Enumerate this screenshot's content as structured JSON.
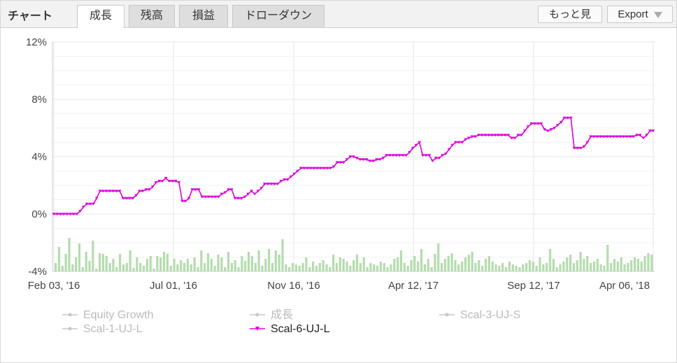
{
  "header": {
    "title": "チャート",
    "tabs": [
      {
        "label": "成長",
        "active": true
      },
      {
        "label": "残高",
        "active": false
      },
      {
        "label": "損益",
        "active": false
      },
      {
        "label": "ドローダウン",
        "active": false
      }
    ],
    "more_label": "もっと見",
    "export_label": "Export"
  },
  "colors": {
    "line": "#dd00dd",
    "bars": "#b5dcae",
    "grid": "#e6e6e6",
    "legend_inactive": "#c8c8c8",
    "legend_active": "#dd00dd"
  },
  "chart_data": {
    "type": "line",
    "ylim": [
      -4,
      12
    ],
    "yticks": [
      12,
      8,
      4,
      0,
      -4
    ],
    "ytick_labels": [
      "12%",
      "8%",
      "4%",
      "0%",
      "-4%"
    ],
    "xtick_labels": [
      "Feb 03, '16",
      "Jul 01, '16",
      "Nov 16, '16",
      "Apr 12, '17",
      "Sep 12, '17",
      "Apr 06, '18"
    ],
    "series": [
      {
        "name": "Scal-6-UJ-L",
        "values": [
          0.0,
          0.0,
          0.0,
          0.0,
          0.0,
          0.0,
          0.0,
          0.0,
          0.2,
          0.5,
          0.7,
          0.7,
          0.7,
          1.1,
          1.6,
          1.6,
          1.6,
          1.6,
          1.6,
          1.6,
          1.6,
          1.1,
          1.1,
          1.1,
          1.1,
          1.3,
          1.6,
          1.6,
          1.7,
          1.7,
          1.9,
          2.2,
          2.3,
          2.3,
          2.5,
          2.3,
          2.3,
          2.3,
          2.2,
          0.9,
          0.9,
          1.1,
          1.7,
          1.7,
          1.7,
          1.2,
          1.2,
          1.2,
          1.2,
          1.2,
          1.2,
          1.4,
          1.5,
          1.7,
          1.7,
          1.1,
          1.1,
          1.1,
          1.2,
          1.4,
          1.6,
          1.4,
          1.6,
          1.8,
          2.1,
          2.1,
          2.1,
          2.1,
          2.1,
          2.3,
          2.4,
          2.4,
          2.6,
          2.8,
          3.0,
          3.2,
          3.2,
          3.2,
          3.2,
          3.2,
          3.2,
          3.2,
          3.2,
          3.2,
          3.2,
          3.3,
          3.6,
          3.6,
          3.6,
          3.8,
          4.0,
          4.0,
          3.9,
          3.8,
          3.8,
          3.8,
          3.7,
          3.7,
          3.8,
          3.8,
          3.9,
          4.1,
          4.1,
          4.1,
          4.1,
          4.1,
          4.1,
          4.1,
          4.3,
          4.6,
          4.8,
          5.0,
          4.1,
          4.1,
          4.1,
          3.7,
          3.9,
          3.9,
          4.1,
          4.2,
          4.5,
          4.8,
          5.0,
          5.0,
          5.0,
          5.2,
          5.3,
          5.4,
          5.4,
          5.5,
          5.5,
          5.5,
          5.5,
          5.5,
          5.5,
          5.5,
          5.5,
          5.5,
          5.5,
          5.3,
          5.3,
          5.5,
          5.5,
          5.8,
          6.1,
          6.3,
          6.3,
          6.3,
          6.3,
          5.9,
          5.8,
          5.9,
          6.0,
          6.2,
          6.4,
          6.7,
          6.7,
          6.7,
          4.6,
          4.6,
          4.6,
          4.7,
          5.0,
          5.4,
          5.4,
          5.4,
          5.4,
          5.4,
          5.4,
          5.4,
          5.4,
          5.4,
          5.4,
          5.4,
          5.4,
          5.4,
          5.4,
          5.5,
          5.5,
          5.3,
          5.5,
          5.8,
          5.8
        ]
      }
    ],
    "legend": [
      {
        "label": "Equity Growth",
        "active": false
      },
      {
        "label": "成長",
        "active": false
      },
      {
        "label": "Scal-3-UJ-S",
        "active": false
      },
      {
        "label": "Scal-1-UJ-L",
        "active": false
      },
      {
        "label": "Scal-6-UJ-L",
        "active": true
      }
    ],
    "legend_position": "bottom",
    "grid": true
  }
}
